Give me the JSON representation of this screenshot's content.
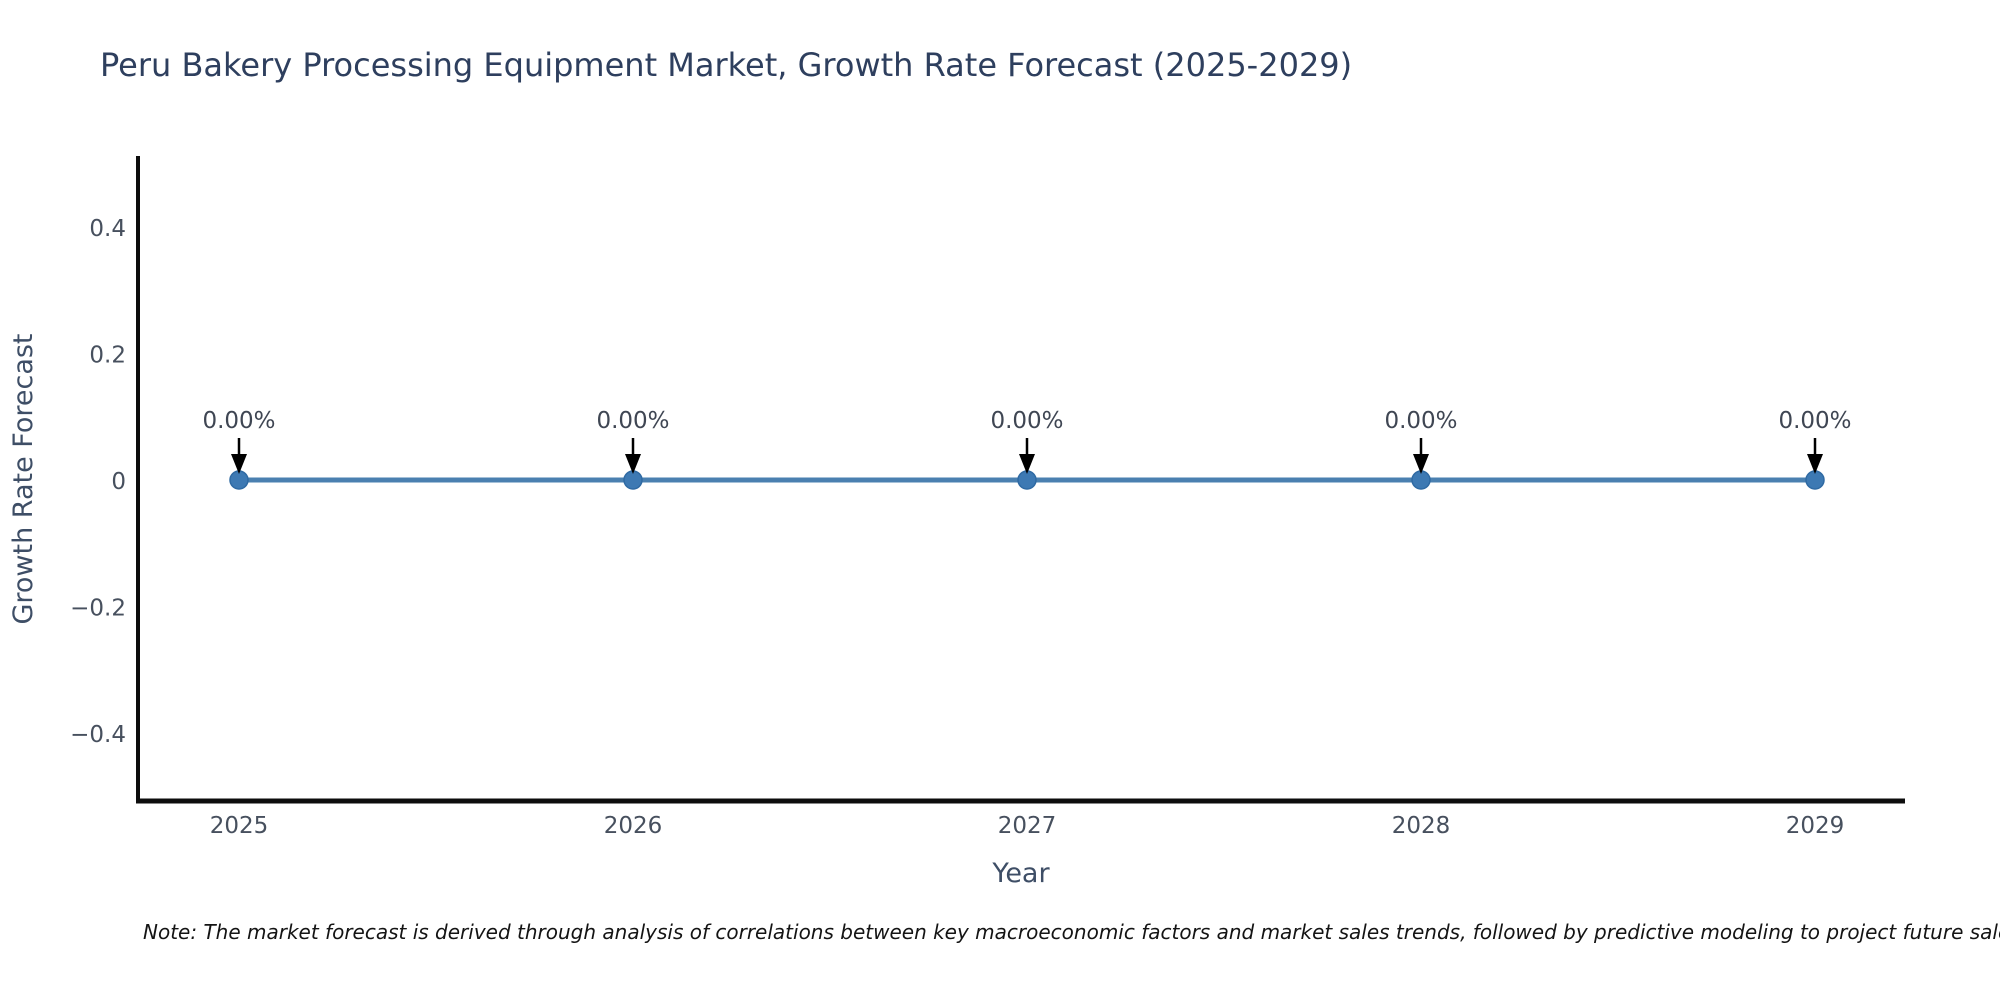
{
  "title": "Peru Bakery Processing Equipment Market, Growth Rate Forecast (2025-2029)",
  "note": "Note: The market forecast is derived through analysis of correlations between key macroeconomic factors and market sales trends, followed by predictive modeling to project future sales",
  "colors": {
    "title": "#2e3f5e",
    "axis_title": "#3e4e66",
    "tick_label": "#47505e",
    "spine": "#0d0d0d",
    "line": "#4a80b0",
    "marker_fill": "#3d79b3",
    "marker_edge": "#2f6aa3",
    "annotation_text": "#3f4653",
    "annotation_arrow": "#000000",
    "background": "#ffffff"
  },
  "chart_data": {
    "type": "line",
    "title": "Peru Bakery Processing Equipment Market, Growth Rate Forecast (2025-2029)",
    "x": [
      2025,
      2026,
      2027,
      2028,
      2029
    ],
    "values": [
      0,
      0,
      0,
      0,
      0
    ],
    "point_labels": [
      "0.00%",
      "0.00%",
      "0.00%",
      "0.00%",
      "0.00%"
    ],
    "xlabel": "Year",
    "ylabel": "Growth Rate Forecast",
    "x_tick_labels": [
      "2025",
      "2026",
      "2027",
      "2028",
      "2029"
    ],
    "y_ticks": [
      0.4,
      0.2,
      0,
      -0.2,
      -0.4
    ],
    "y_tick_labels": [
      "0.4",
      "0.2",
      "0",
      "−0.2",
      "−0.4"
    ],
    "ylim": [
      -0.51,
      0.51
    ],
    "grid": false,
    "legend_position": "none",
    "marker": "circle",
    "line_width": 5,
    "marker_radius": 9
  }
}
